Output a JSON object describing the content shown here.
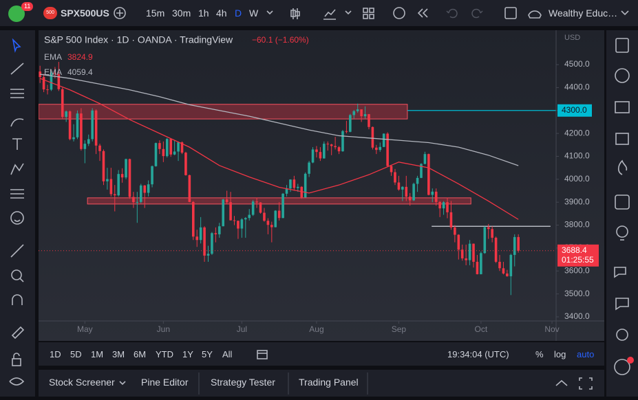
{
  "toolbar": {
    "badge": "11",
    "symbol_badge": "500",
    "symbol": "SPX500US",
    "intervals": [
      "15m",
      "30m",
      "1h",
      "4h",
      "D",
      "W"
    ],
    "account": "Wealthy Educ…"
  },
  "chart_data": {
    "type": "candlestick",
    "title": "S&P 500 Index · 1D · OANDA · TradingView",
    "change_label": "−60.1 (−1.60%)",
    "y_label": "USD",
    "countdown": "01:25:55",
    "up_color": "#26a69a",
    "down_color": "#f23645",
    "open": [
      4470,
      4446,
      4392,
      4391,
      4462,
      4459,
      4393,
      4272,
      4296,
      4175,
      4183,
      4287,
      4132,
      4155,
      4175,
      4300,
      4147,
      4123,
      3991,
      4001,
      3935,
      3930,
      4023,
      4008,
      4088,
      3923,
      3900,
      3901,
      3973,
      3941,
      3978,
      4057,
      4158,
      4132,
      4101,
      4176,
      4108,
      4121,
      4161,
      4116,
      4018,
      3901,
      3750,
      3735,
      3790,
      3667,
      3675,
      3765,
      3760,
      3795,
      3912,
      3900,
      3821,
      3819,
      3785,
      3825,
      3831,
      3845,
      3903,
      3899,
      3854,
      3819,
      3801,
      3791,
      3863,
      3831,
      3937,
      3960,
      3999,
      3962,
      3967,
      3921,
      4024,
      4073,
      4130,
      4119,
      4091,
      4155,
      4152,
      4145,
      4140,
      4122,
      4210,
      4207,
      4280,
      4297,
      4305,
      4275,
      4284,
      4228,
      4138,
      4128,
      4141,
      4199,
      4058,
      4031,
      3986,
      3955,
      3967,
      3924,
      3908,
      3980,
      4006,
      4067,
      4110,
      3932,
      3946,
      3901,
      3873,
      3900,
      3856,
      3790,
      3758,
      3693,
      3655,
      3647,
      3719,
      3640,
      3586,
      3678,
      3791,
      3783,
      3745,
      3640,
      3612,
      3589,
      3577,
      3670,
      3748
    ],
    "high": [
      4495,
      4460,
      4412,
      4470,
      4490,
      4512,
      4400,
      4300,
      4300,
      4240,
      4300,
      4310,
      4170,
      4195,
      4310,
      4305,
      4155,
      4130,
      4050,
      4050,
      3975,
      4040,
      4048,
      4090,
      4090,
      3945,
      3945,
      3980,
      3975,
      3995,
      4060,
      4160,
      4170,
      4165,
      4180,
      4178,
      4170,
      4165,
      4165,
      4120,
      4020,
      3905,
      3780,
      3835,
      3795,
      3710,
      3770,
      3790,
      3810,
      3915,
      3950,
      3945,
      3840,
      3820,
      3830,
      3835,
      3870,
      3910,
      3920,
      3900,
      3875,
      3830,
      3815,
      3865,
      3900,
      3940,
      3975,
      4000,
      4015,
      3980,
      3970,
      4030,
      4080,
      4140,
      4145,
      4140,
      4165,
      4165,
      4155,
      4185,
      4145,
      4215,
      4255,
      4285,
      4302,
      4330,
      4305,
      4318,
      4285,
      4230,
      4150,
      4160,
      4200,
      4205,
      4060,
      4045,
      4015,
      3970,
      4015,
      3940,
      3985,
      4015,
      4070,
      4120,
      4112,
      3960,
      3960,
      3905,
      3905,
      3920,
      3905,
      3800,
      3760,
      3715,
      3715,
      3735,
      3720,
      3670,
      3685,
      3795,
      3805,
      3795,
      3750,
      3670,
      3640,
      3605,
      3675,
      3760,
      3760
    ],
    "low": [
      4420,
      4380,
      4370,
      4385,
      4440,
      4385,
      4265,
      4250,
      4170,
      4165,
      4175,
      4125,
      4070,
      4145,
      4165,
      4110,
      4080,
      3975,
      3955,
      3925,
      3860,
      3925,
      3985,
      4000,
      3915,
      3875,
      3810,
      3895,
      3875,
      3925,
      3965,
      4055,
      4110,
      4075,
      4095,
      4098,
      4105,
      4080,
      4110,
      4016,
      3900,
      3735,
      3705,
      3720,
      3640,
      3640,
      3670,
      3725,
      3745,
      3795,
      3890,
      3820,
      3800,
      3740,
      3745,
      3745,
      3820,
      3840,
      3875,
      3850,
      3815,
      3760,
      3725,
      3790,
      3820,
      3830,
      3925,
      3945,
      3950,
      3945,
      3915,
      3920,
      4010,
      4070,
      4095,
      4080,
      4090,
      4125,
      4105,
      4130,
      4110,
      4120,
      4200,
      4205,
      4265,
      4290,
      4250,
      4265,
      4218,
      4130,
      4110,
      4120,
      4140,
      4055,
      4015,
      3975,
      3950,
      3905,
      3905,
      3885,
      3905,
      3945,
      4005,
      4065,
      3930,
      3900,
      3885,
      3835,
      3845,
      3830,
      3780,
      3725,
      3650,
      3645,
      3625,
      3625,
      3615,
      3585,
      3585,
      3675,
      3740,
      3725,
      3635,
      3600,
      3585,
      3575,
      3495,
      3620,
      3680
    ],
    "close": [
      4446,
      4392,
      4391,
      4462,
      4459,
      4393,
      4272,
      4296,
      4175,
      4183,
      4287,
      4132,
      4155,
      4175,
      4300,
      4147,
      4123,
      3991,
      4001,
      3935,
      3930,
      4023,
      4008,
      4088,
      3923,
      3900,
      3901,
      3973,
      3941,
      3978,
      4057,
      4158,
      4132,
      4101,
      4176,
      4108,
      4121,
      4161,
      4116,
      4018,
      3901,
      3750,
      3735,
      3790,
      3667,
      3675,
      3765,
      3760,
      3795,
      3912,
      3900,
      3821,
      3819,
      3785,
      3825,
      3831,
      3845,
      3903,
      3899,
      3854,
      3819,
      3801,
      3791,
      3863,
      3831,
      3937,
      3960,
      3999,
      3962,
      3967,
      3921,
      4024,
      4073,
      4130,
      4119,
      4091,
      4155,
      4152,
      4145,
      4140,
      4122,
      4210,
      4207,
      4280,
      4297,
      4305,
      4275,
      4284,
      4228,
      4138,
      4128,
      4141,
      4199,
      4058,
      4031,
      3986,
      3955,
      3967,
      3924,
      3908,
      3980,
      4006,
      4067,
      4110,
      3932,
      3946,
      3901,
      3873,
      3900,
      3856,
      3790,
      3758,
      3693,
      3655,
      3647,
      3719,
      3640,
      3586,
      3678,
      3791,
      3783,
      3745,
      3640,
      3612,
      3589,
      3577,
      3670,
      3748,
      3688.4
    ],
    "series": [
      {
        "name": "EMA",
        "color": "#f23645",
        "x": [
          0,
          8,
          16,
          24,
          32,
          40,
          48,
          56,
          64,
          72,
          80,
          88,
          96,
          104,
          112,
          120,
          128
        ],
        "values": [
          4440,
          4390,
          4330,
          4260,
          4200,
          4140,
          4060,
          4010,
          3965,
          3940,
          3975,
          4020,
          4075,
          4050,
          3980,
          3905,
          3824.9
        ]
      },
      {
        "name": "EMA",
        "color": "#b2b5be",
        "x": [
          0,
          8,
          16,
          24,
          32,
          40,
          48,
          56,
          64,
          72,
          80,
          88,
          96,
          104,
          112,
          120,
          128
        ],
        "values": [
          4458,
          4440,
          4415,
          4390,
          4360,
          4325,
          4300,
          4275,
          4245,
          4215,
          4190,
          4180,
          4170,
          4160,
          4140,
          4105,
          4059.4
        ]
      }
    ],
    "boxes": [
      {
        "x": [
          -0.4,
          98.3
        ],
        "y": [
          4263,
          4327
        ]
      },
      {
        "x": [
          12.7,
          115.3
        ],
        "y": [
          3892,
          3919
        ]
      }
    ],
    "levels": [
      {
        "value": 4300,
        "label": "4300.0",
        "x": [
          98.3,
          138.1
        ],
        "color": "#00bcd4"
      },
      {
        "value": 3795,
        "x": [
          104.8,
          136.6
        ],
        "color": "#d1d4dc"
      }
    ],
    "xlim": [
      -0.4,
      138.1
    ],
    "ylim": [
      3382,
      4650
    ],
    "xticks": [
      {
        "value": 12,
        "label": "May"
      },
      {
        "value": 33,
        "label": "Jun"
      },
      {
        "value": 54,
        "label": "Jul"
      },
      {
        "value": 74,
        "label": "Aug"
      },
      {
        "value": 96,
        "label": "Sep"
      },
      {
        "value": 118,
        "label": "Oct"
      },
      {
        "value": 137,
        "label": "Nov"
      }
    ],
    "yticks": [
      {
        "value": 3400,
        "label": "3400.0"
      },
      {
        "value": 3500,
        "label": "3500.0"
      },
      {
        "value": 3600,
        "label": "3600.0"
      },
      {
        "value": 3700,
        "label": "3700.0"
      },
      {
        "value": 3800,
        "label": "3800.0"
      },
      {
        "value": 3900,
        "label": "3900.0"
      },
      {
        "value": 4000,
        "label": "4000.0"
      },
      {
        "value": 4100,
        "label": "4100.0"
      },
      {
        "value": 4200,
        "label": "4200.0"
      },
      {
        "value": 4300,
        "label": "4300.0"
      },
      {
        "value": 4400,
        "label": "4400.0"
      },
      {
        "value": 4500,
        "label": "4500.0"
      }
    ],
    "grid": false
  },
  "range_bar": {
    "ranges": [
      "1D",
      "5D",
      "1M",
      "3M",
      "6M",
      "YTD",
      "1Y",
      "5Y",
      "All"
    ],
    "clock": "19:34:04 (UTC)",
    "options": [
      "%",
      "log",
      "auto"
    ]
  },
  "panel_tabs": [
    "Stock Screener",
    "Pine Editor",
    "Strategy Tester",
    "Trading Panel"
  ]
}
